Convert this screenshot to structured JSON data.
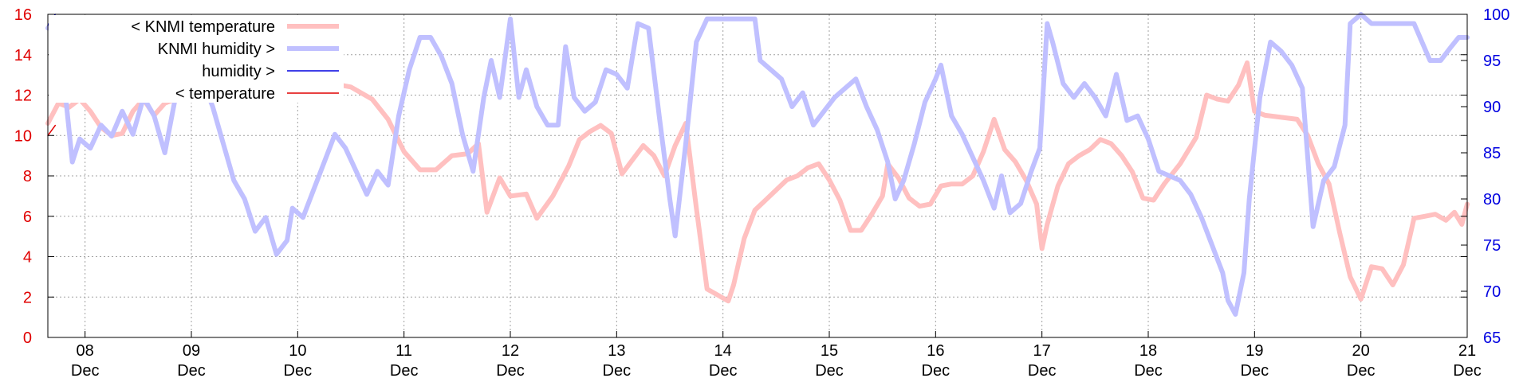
{
  "chart_data": {
    "type": "line",
    "y_left": {
      "ylim": [
        0,
        16
      ],
      "ticks": [
        0,
        2,
        4,
        6,
        8,
        10,
        12,
        14,
        16
      ],
      "color": "#e00000"
    },
    "y_right": {
      "ylim": [
        65,
        100
      ],
      "ticks": [
        65,
        70,
        75,
        80,
        85,
        90,
        95,
        100
      ],
      "color": "#0000e0"
    },
    "x_axis": {
      "xlim": [
        7.65,
        21.0
      ],
      "ticks": [
        {
          "value": 8,
          "day": "08",
          "month": "Dec"
        },
        {
          "value": 9,
          "day": "09",
          "month": "Dec"
        },
        {
          "value": 10,
          "day": "10",
          "month": "Dec"
        },
        {
          "value": 11,
          "day": "11",
          "month": "Dec"
        },
        {
          "value": 12,
          "day": "12",
          "month": "Dec"
        },
        {
          "value": 13,
          "day": "13",
          "month": "Dec"
        },
        {
          "value": 14,
          "day": "14",
          "month": "Dec"
        },
        {
          "value": 15,
          "day": "15",
          "month": "Dec"
        },
        {
          "value": 16,
          "day": "16",
          "month": "Dec"
        },
        {
          "value": 17,
          "day": "17",
          "month": "Dec"
        },
        {
          "value": 18,
          "day": "18",
          "month": "Dec"
        },
        {
          "value": 19,
          "day": "19",
          "month": "Dec"
        },
        {
          "value": 20,
          "day": "20",
          "month": "Dec"
        },
        {
          "value": 21,
          "day": "21",
          "month": "Dec"
        }
      ]
    },
    "grid": true,
    "legend_position": "top-left",
    "series": [
      {
        "name": "< KNMI temperature",
        "axis": "left",
        "color": "#ffc0c0",
        "style": "thick",
        "points": [
          [
            7.65,
            10.6
          ],
          [
            7.75,
            11.6
          ],
          [
            7.85,
            11.4
          ],
          [
            7.95,
            11.8
          ],
          [
            8.05,
            11.2
          ],
          [
            8.15,
            10.4
          ],
          [
            8.25,
            10.0
          ],
          [
            8.35,
            10.1
          ],
          [
            8.45,
            11.2
          ],
          [
            8.55,
            11.8
          ],
          [
            8.65,
            11.0
          ],
          [
            8.75,
            11.6
          ],
          [
            8.85,
            11.8
          ],
          [
            9.3,
            12.0
          ],
          [
            9.7,
            12.4
          ],
          [
            10.0,
            12.2
          ],
          [
            10.3,
            12.6
          ],
          [
            10.5,
            12.4
          ],
          [
            10.7,
            11.8
          ],
          [
            10.85,
            10.8
          ],
          [
            11.0,
            9.2
          ],
          [
            11.15,
            8.3
          ],
          [
            11.3,
            8.3
          ],
          [
            11.45,
            9.0
          ],
          [
            11.6,
            9.1
          ],
          [
            11.7,
            9.6
          ],
          [
            11.78,
            6.2
          ],
          [
            11.9,
            7.9
          ],
          [
            12.0,
            7.0
          ],
          [
            12.15,
            7.1
          ],
          [
            12.25,
            5.9
          ],
          [
            12.4,
            7.0
          ],
          [
            12.55,
            8.5
          ],
          [
            12.65,
            9.8
          ],
          [
            12.75,
            10.2
          ],
          [
            12.85,
            10.5
          ],
          [
            12.95,
            10.1
          ],
          [
            13.05,
            8.1
          ],
          [
            13.15,
            8.8
          ],
          [
            13.25,
            9.5
          ],
          [
            13.35,
            9.0
          ],
          [
            13.45,
            8.0
          ],
          [
            13.55,
            9.5
          ],
          [
            13.65,
            10.6
          ],
          [
            13.75,
            6.4
          ],
          [
            13.85,
            2.4
          ],
          [
            13.95,
            2.1
          ],
          [
            14.05,
            1.8
          ],
          [
            14.1,
            2.6
          ],
          [
            14.2,
            4.9
          ],
          [
            14.3,
            6.3
          ],
          [
            14.4,
            6.8
          ],
          [
            14.5,
            7.3
          ],
          [
            14.6,
            7.8
          ],
          [
            14.7,
            8.0
          ],
          [
            14.8,
            8.4
          ],
          [
            14.9,
            8.6
          ],
          [
            15.0,
            7.8
          ],
          [
            15.1,
            6.8
          ],
          [
            15.2,
            5.3
          ],
          [
            15.3,
            5.3
          ],
          [
            15.4,
            6.1
          ],
          [
            15.5,
            7.0
          ],
          [
            15.55,
            8.6
          ],
          [
            15.65,
            7.9
          ],
          [
            15.75,
            6.9
          ],
          [
            15.85,
            6.5
          ],
          [
            15.95,
            6.6
          ],
          [
            16.05,
            7.5
          ],
          [
            16.15,
            7.6
          ],
          [
            16.25,
            7.6
          ],
          [
            16.35,
            8.0
          ],
          [
            16.45,
            9.2
          ],
          [
            16.55,
            10.8
          ],
          [
            16.65,
            9.3
          ],
          [
            16.75,
            8.7
          ],
          [
            16.85,
            7.8
          ],
          [
            16.95,
            6.6
          ],
          [
            17.0,
            4.4
          ],
          [
            17.05,
            5.6
          ],
          [
            17.15,
            7.5
          ],
          [
            17.25,
            8.6
          ],
          [
            17.35,
            9.0
          ],
          [
            17.45,
            9.3
          ],
          [
            17.55,
            9.8
          ],
          [
            17.65,
            9.6
          ],
          [
            17.75,
            9.0
          ],
          [
            17.85,
            8.2
          ],
          [
            17.95,
            6.9
          ],
          [
            18.05,
            6.8
          ],
          [
            18.15,
            7.6
          ],
          [
            18.3,
            8.6
          ],
          [
            18.45,
            9.9
          ],
          [
            18.55,
            12.0
          ],
          [
            18.65,
            11.8
          ],
          [
            18.75,
            11.7
          ],
          [
            18.85,
            12.5
          ],
          [
            18.93,
            13.6
          ],
          [
            19.0,
            11.2
          ],
          [
            19.1,
            11.0
          ],
          [
            19.25,
            10.9
          ],
          [
            19.4,
            10.8
          ],
          [
            19.5,
            10.0
          ],
          [
            19.6,
            8.6
          ],
          [
            19.7,
            7.6
          ],
          [
            19.8,
            5.2
          ],
          [
            19.9,
            3.0
          ],
          [
            20.0,
            1.9
          ],
          [
            20.1,
            3.5
          ],
          [
            20.2,
            3.4
          ],
          [
            20.3,
            2.6
          ],
          [
            20.4,
            3.6
          ],
          [
            20.5,
            5.9
          ],
          [
            20.6,
            6.0
          ],
          [
            20.7,
            6.1
          ],
          [
            20.8,
            5.8
          ],
          [
            20.88,
            6.2
          ],
          [
            20.95,
            5.6
          ],
          [
            21.0,
            6.6
          ]
        ]
      },
      {
        "name": "KNMI humidity >",
        "axis": "right",
        "color": "#c0c0ff",
        "style": "thick",
        "points": [
          [
            7.65,
            98.5
          ],
          [
            7.72,
            99.5
          ],
          [
            7.8,
            93.0
          ],
          [
            7.88,
            84.0
          ],
          [
            7.95,
            86.5
          ],
          [
            8.05,
            85.5
          ],
          [
            8.15,
            88.0
          ],
          [
            8.25,
            86.8
          ],
          [
            8.35,
            89.5
          ],
          [
            8.45,
            87.0
          ],
          [
            8.55,
            91.0
          ],
          [
            8.65,
            89.0
          ],
          [
            8.75,
            85.0
          ],
          [
            8.85,
            91.0
          ],
          [
            9.0,
            91.0
          ],
          [
            9.1,
            93.0
          ],
          [
            9.2,
            90.0
          ],
          [
            9.3,
            86.0
          ],
          [
            9.4,
            82.0
          ],
          [
            9.5,
            80.0
          ],
          [
            9.6,
            76.5
          ],
          [
            9.7,
            78.0
          ],
          [
            9.8,
            74.0
          ],
          [
            9.9,
            75.5
          ],
          [
            9.95,
            79.0
          ],
          [
            10.05,
            78.0
          ],
          [
            10.15,
            81.0
          ],
          [
            10.25,
            84.0
          ],
          [
            10.35,
            87.0
          ],
          [
            10.45,
            85.5
          ],
          [
            10.55,
            83.0
          ],
          [
            10.65,
            80.5
          ],
          [
            10.75,
            83.0
          ],
          [
            10.85,
            81.5
          ],
          [
            10.95,
            89.0
          ],
          [
            11.05,
            94.0
          ],
          [
            11.15,
            97.5
          ],
          [
            11.25,
            97.5
          ],
          [
            11.35,
            95.5
          ],
          [
            11.45,
            92.5
          ],
          [
            11.55,
            87.0
          ],
          [
            11.65,
            83.0
          ],
          [
            11.75,
            91.0
          ],
          [
            11.82,
            95.0
          ],
          [
            11.9,
            91.0
          ],
          [
            12.0,
            99.5
          ],
          [
            12.08,
            91.0
          ],
          [
            12.15,
            94.0
          ],
          [
            12.25,
            90.0
          ],
          [
            12.35,
            88.0
          ],
          [
            12.45,
            88.0
          ],
          [
            12.52,
            96.5
          ],
          [
            12.6,
            91.0
          ],
          [
            12.7,
            89.5
          ],
          [
            12.8,
            90.5
          ],
          [
            12.9,
            94.0
          ],
          [
            13.0,
            93.5
          ],
          [
            13.1,
            92.0
          ],
          [
            13.2,
            99.0
          ],
          [
            13.3,
            98.5
          ],
          [
            13.4,
            89.0
          ],
          [
            13.5,
            80.0
          ],
          [
            13.55,
            76.0
          ],
          [
            13.65,
            86.0
          ],
          [
            13.75,
            97.0
          ],
          [
            13.85,
            99.5
          ],
          [
            14.0,
            99.5
          ],
          [
            14.3,
            99.5
          ],
          [
            14.35,
            95.0
          ],
          [
            14.45,
            94.0
          ],
          [
            14.55,
            93.0
          ],
          [
            14.65,
            90.0
          ],
          [
            14.75,
            91.5
          ],
          [
            14.85,
            88.0
          ],
          [
            14.95,
            89.5
          ],
          [
            15.05,
            91.0
          ],
          [
            15.15,
            92.0
          ],
          [
            15.25,
            93.0
          ],
          [
            15.35,
            90.0
          ],
          [
            15.45,
            87.5
          ],
          [
            15.55,
            84.0
          ],
          [
            15.62,
            80.0
          ],
          [
            15.7,
            82.0
          ],
          [
            15.8,
            86.0
          ],
          [
            15.9,
            90.5
          ],
          [
            16.0,
            93.0
          ],
          [
            16.05,
            94.5
          ],
          [
            16.15,
            89.0
          ],
          [
            16.25,
            87.0
          ],
          [
            16.35,
            84.5
          ],
          [
            16.45,
            82.0
          ],
          [
            16.55,
            79.0
          ],
          [
            16.62,
            82.5
          ],
          [
            16.7,
            78.5
          ],
          [
            16.8,
            79.5
          ],
          [
            16.9,
            83.0
          ],
          [
            16.98,
            85.5
          ],
          [
            17.05,
            99.0
          ],
          [
            17.1,
            97.0
          ],
          [
            17.2,
            92.5
          ],
          [
            17.3,
            91.0
          ],
          [
            17.4,
            92.5
          ],
          [
            17.5,
            91.0
          ],
          [
            17.6,
            89.0
          ],
          [
            17.7,
            93.5
          ],
          [
            17.8,
            88.5
          ],
          [
            17.9,
            89.0
          ],
          [
            18.0,
            86.5
          ],
          [
            18.1,
            83.0
          ],
          [
            18.2,
            82.5
          ],
          [
            18.3,
            82.0
          ],
          [
            18.4,
            80.5
          ],
          [
            18.5,
            78.0
          ],
          [
            18.6,
            75.0
          ],
          [
            18.7,
            72.0
          ],
          [
            18.75,
            69.0
          ],
          [
            18.82,
            67.5
          ],
          [
            18.9,
            72.0
          ],
          [
            18.95,
            80.0
          ],
          [
            19.05,
            91.0
          ],
          [
            19.15,
            97.0
          ],
          [
            19.25,
            96.0
          ],
          [
            19.35,
            94.5
          ],
          [
            19.45,
            92.0
          ],
          [
            19.55,
            77.0
          ],
          [
            19.65,
            82.0
          ],
          [
            19.75,
            83.5
          ],
          [
            19.85,
            88.0
          ],
          [
            19.9,
            99.0
          ],
          [
            20.0,
            100.0
          ],
          [
            20.1,
            99.0
          ],
          [
            20.5,
            99.0
          ],
          [
            20.65,
            95.0
          ],
          [
            20.75,
            95.0
          ],
          [
            20.85,
            96.5
          ],
          [
            20.92,
            97.5
          ],
          [
            21.0,
            97.5
          ]
        ]
      },
      {
        "name": "humidity >",
        "axis": "right",
        "color": "#0000e0",
        "style": "thin",
        "points": [
          [
            7.65,
            98.8
          ],
          [
            7.72,
            100.0
          ]
        ]
      },
      {
        "name": "< temperature",
        "axis": "left",
        "color": "#e00000",
        "style": "thin",
        "points": [
          [
            7.65,
            10.0
          ],
          [
            7.72,
            10.5
          ]
        ]
      }
    ]
  }
}
